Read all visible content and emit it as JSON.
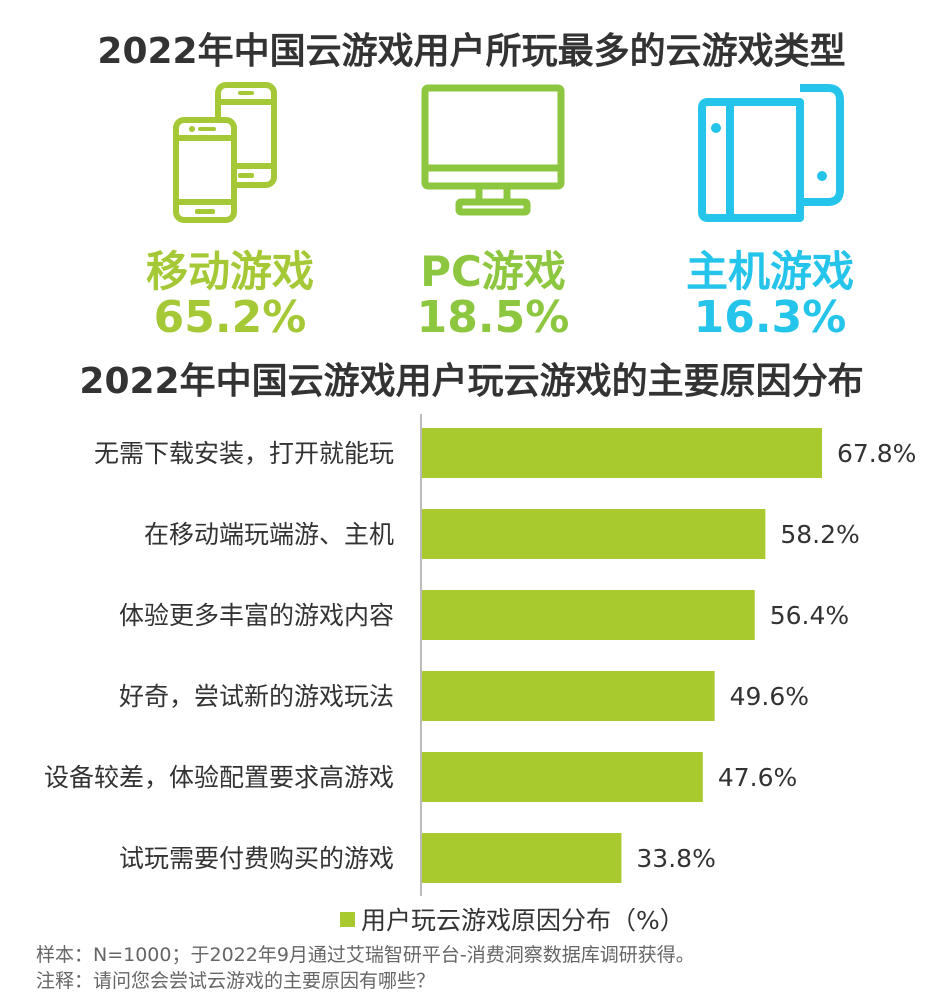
{
  "colors": {
    "green": "#8dc63f",
    "lime": "#a5c936",
    "cyan": "#25c4ea",
    "text": "#333333",
    "bar": "#a8ca2e"
  },
  "chart_data": [
    {
      "type": "table",
      "title": "2022年中国云游戏用户所玩最多的云游戏类型",
      "items": [
        {
          "label": "移动游戏",
          "value": "65.2%",
          "icon": "smartphones-icon",
          "color": "#a5c936"
        },
        {
          "label": "PC游戏",
          "value": "18.5%",
          "icon": "desktop-monitor-icon",
          "color": "#8dc63f"
        },
        {
          "label": "主机游戏",
          "value": "16.3%",
          "icon": "game-console-icon",
          "color": "#25c4ea"
        }
      ]
    },
    {
      "type": "bar",
      "orientation": "horizontal",
      "title": "2022年中国云游戏用户玩云游戏的主要原因分布",
      "categories": [
        "无需下载安装，打开就能玩",
        "在移动端玩端游、主机",
        "体验更多丰富的游戏内容",
        "好奇，尝试新的游戏玩法",
        "设备较差，体验配置要求高游戏",
        "试玩需要付费购买的游戏"
      ],
      "values": [
        67.8,
        58.2,
        56.4,
        49.6,
        47.6,
        33.8
      ],
      "value_labels": [
        "67.8%",
        "58.2%",
        "56.4%",
        "49.6%",
        "47.6%",
        "33.8%"
      ],
      "series": [
        {
          "name": "用户玩云游戏原因分布（%）",
          "values": [
            67.8,
            58.2,
            56.4,
            49.6,
            47.6,
            33.8
          ]
        }
      ],
      "xlim": [
        0,
        80
      ],
      "grid": false,
      "legend_position": "bottom"
    }
  ],
  "footer": {
    "sample": "样本：N=1000；于2022年9月通过艾瑞智研平台-消费洞察数据库调研获得。",
    "note": "注释：请问您会尝试云游戏的主要原因有哪些？"
  }
}
